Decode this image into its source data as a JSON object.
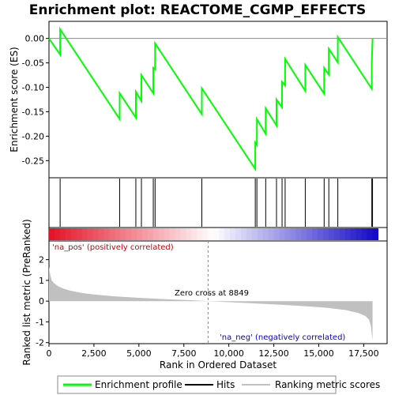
{
  "chart_data": {
    "type": "line",
    "title": "Enrichment plot: REACTOME_CGMP_EFFECTS",
    "top_panel": {
      "ylabel": "Enrichment score (ES)",
      "ylim": [
        -0.285,
        0.035
      ],
      "yticks": [
        0.0,
        -0.05,
        -0.1,
        -0.15,
        -0.2,
        -0.25
      ],
      "ytick_labels": [
        "0.00",
        "-0.05",
        "-0.10",
        "-0.15",
        "-0.20",
        "-0.25"
      ],
      "grid": false,
      "series": [
        {
          "name": "Enrichment profile",
          "color": "#00ff00",
          "x": [
            0,
            620,
            620,
            3930,
            3930,
            4830,
            4830,
            5140,
            5140,
            5800,
            5800,
            5900,
            5900,
            8500,
            8500,
            11470,
            11470,
            11560,
            11560,
            12050,
            12050,
            12650,
            12650,
            12960,
            12960,
            13130,
            13130,
            14250,
            14250,
            15300,
            15300,
            15560,
            15560,
            16060,
            16060,
            17950,
            17950,
            17990
          ],
          "y": [
            0.0,
            -0.033,
            0.019,
            -0.165,
            -0.112,
            -0.162,
            -0.109,
            -0.128,
            -0.075,
            -0.112,
            -0.06,
            -0.063,
            -0.01,
            -0.155,
            -0.102,
            -0.267,
            -0.213,
            -0.218,
            -0.165,
            -0.195,
            -0.143,
            -0.178,
            -0.125,
            -0.141,
            -0.089,
            -0.096,
            -0.042,
            -0.107,
            -0.054,
            -0.113,
            -0.06,
            -0.074,
            -0.021,
            -0.049,
            0.003,
            -0.103,
            -0.051,
            0.0
          ]
        }
      ]
    },
    "hits": {
      "name": "Hits",
      "x": [
        620,
        3930,
        4830,
        5140,
        5800,
        5900,
        8500,
        11470,
        11560,
        12050,
        12650,
        12960,
        13130,
        14250,
        15300,
        15560,
        16060,
        17950,
        17990
      ]
    },
    "bottom_panel": {
      "ylabel": "Ranked list metric (PreRanked)",
      "xlabel": "Rank in Ordered Dataset",
      "xlim": [
        0,
        18800
      ],
      "xticks": [
        0,
        2500,
        5000,
        7500,
        10000,
        12500,
        15000,
        17500
      ],
      "xtick_labels": [
        "0",
        "2,500",
        "5,000",
        "7,500",
        "10,000",
        "12,500",
        "15,000",
        "17,500"
      ],
      "ylim": [
        -2.05,
        2.9
      ],
      "yticks": [
        2,
        1,
        0,
        -1,
        -2
      ],
      "ytick_labels": [
        "2",
        "1",
        "0",
        "-1",
        "-2"
      ],
      "series": [
        {
          "name": "Ranking metric scores",
          "color": "#c0c0c0",
          "x": [
            0,
            60,
            150,
            300,
            500,
            800,
            1200,
            1800,
            2500,
            3500,
            5000,
            6500,
            8000,
            8849,
            10000,
            11500,
            13000,
            14500,
            15500,
            16500,
            17200,
            17600,
            17800,
            17900,
            17990
          ],
          "y": [
            1.65,
            1.3,
            1.0,
            0.85,
            0.72,
            0.6,
            0.5,
            0.4,
            0.32,
            0.24,
            0.16,
            0.09,
            0.04,
            0.0,
            -0.05,
            -0.11,
            -0.18,
            -0.26,
            -0.33,
            -0.43,
            -0.57,
            -0.72,
            -0.9,
            -1.2,
            -1.9
          ]
        }
      ],
      "zero_cross_rank": 8849,
      "annotations": {
        "pos": "'na_pos' (positively correlated)",
        "neg": "'na_neg' (negatively correlated)",
        "zero": "Zero cross at 8849"
      }
    },
    "colors": {
      "profile": "#00ff00",
      "hits": "#000000",
      "metric_fill": "#c0c0c0",
      "pos_text": "#cc0000",
      "neg_text": "#0000cc",
      "zero_line": "#888888"
    },
    "legend": {
      "placement": "bottom",
      "entries": [
        "Enrichment profile",
        "Hits",
        "Ranking metric scores"
      ]
    }
  }
}
